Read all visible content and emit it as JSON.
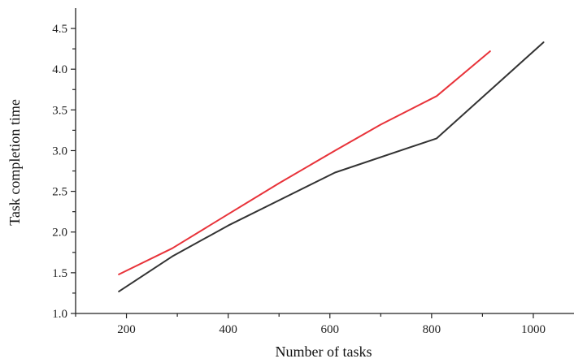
{
  "chart_data": {
    "type": "line",
    "title": "",
    "xlabel": "Number of tasks",
    "ylabel": "Task completion time",
    "xlim": [
      100,
      1080
    ],
    "ylim": [
      1.0,
      4.75
    ],
    "grid": false,
    "x_ticks": [
      200,
      400,
      600,
      800,
      1000
    ],
    "y_ticks": [
      1.0,
      1.5,
      2.0,
      2.5,
      3.0,
      3.5,
      4.0,
      4.5
    ],
    "x_tick_labels": [
      "200",
      "400",
      "600",
      "800",
      "1000"
    ],
    "y_tick_labels": [
      "1.0",
      "1.5",
      "2.0",
      "2.5",
      "3.0",
      "3.5",
      "4.0",
      "4.5"
    ],
    "series": [
      {
        "color": "#e8333a",
        "x": [
          185,
          290,
          400,
          500,
          610,
          700,
          810,
          915
        ],
        "y": [
          1.48,
          1.8,
          2.22,
          2.6,
          3.0,
          3.32,
          3.67,
          4.22
        ]
      },
      {
        "color": "#333333",
        "x": [
          185,
          290,
          400,
          610,
          810,
          1020
        ],
        "y": [
          1.27,
          1.7,
          2.08,
          2.73,
          3.15,
          4.33
        ]
      }
    ]
  }
}
